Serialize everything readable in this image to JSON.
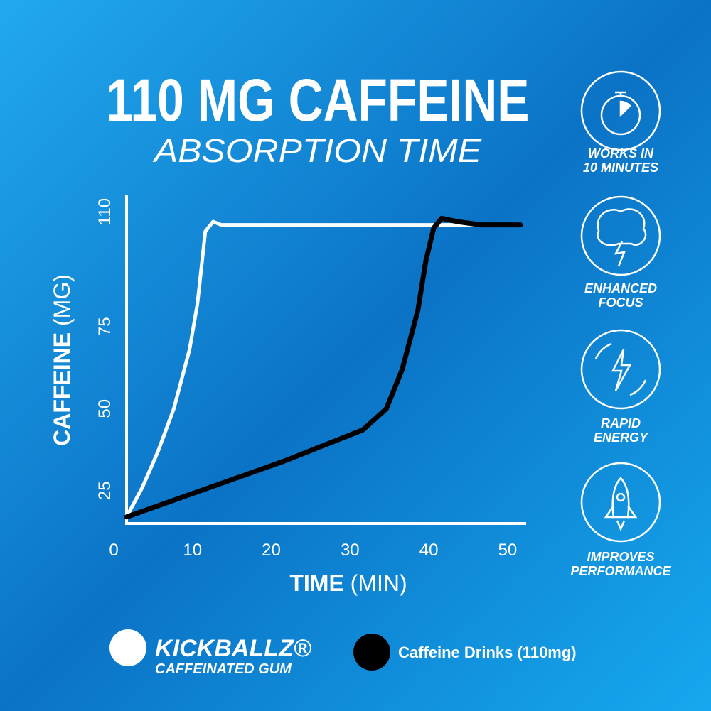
{
  "chart_data": {
    "type": "line",
    "title": "110 MG CAFFEINE",
    "subtitle": "ABSORPTION TIME",
    "x_label": "TIME",
    "x_unit": "(MIN)",
    "y_label": "CAFFEINE",
    "y_unit": "(MG)",
    "xlim": [
      0,
      52
    ],
    "xticks": [
      0,
      10,
      20,
      30,
      40,
      50
    ],
    "ylim": [
      15,
      115
    ],
    "yticks": [
      25,
      50,
      75,
      110
    ],
    "grid": false,
    "series": [
      {
        "name": "KICKBALLZ®",
        "subtitle": "CAFFEINATED GUM",
        "color": "#ffffff",
        "x": [
          0,
          2,
          4,
          6,
          8,
          9,
          10,
          11,
          12,
          15,
          20,
          30,
          40,
          50
        ],
        "values": [
          17,
          26,
          37,
          50,
          68,
          82,
          104,
          107,
          106,
          106,
          106,
          106,
          106,
          106
        ]
      },
      {
        "name": "Caffeine Drinks (110mg)",
        "color": "#000000",
        "x": [
          0,
          10,
          20,
          30,
          33,
          35,
          37,
          38,
          39,
          40,
          42,
          45,
          50
        ],
        "values": [
          17,
          25.5,
          34,
          43.5,
          50,
          62,
          80,
          95,
          105,
          108,
          107,
          106,
          106
        ]
      }
    ]
  },
  "features": [
    {
      "lines": [
        "WORKS IN",
        "10 MINUTES"
      ]
    },
    {
      "lines": [
        "ENHANCED",
        "FOCUS"
      ]
    },
    {
      "lines": [
        "RAPID",
        "ENERGY"
      ]
    },
    {
      "lines": [
        "IMPROVES",
        "PERFORMANCE"
      ]
    }
  ]
}
